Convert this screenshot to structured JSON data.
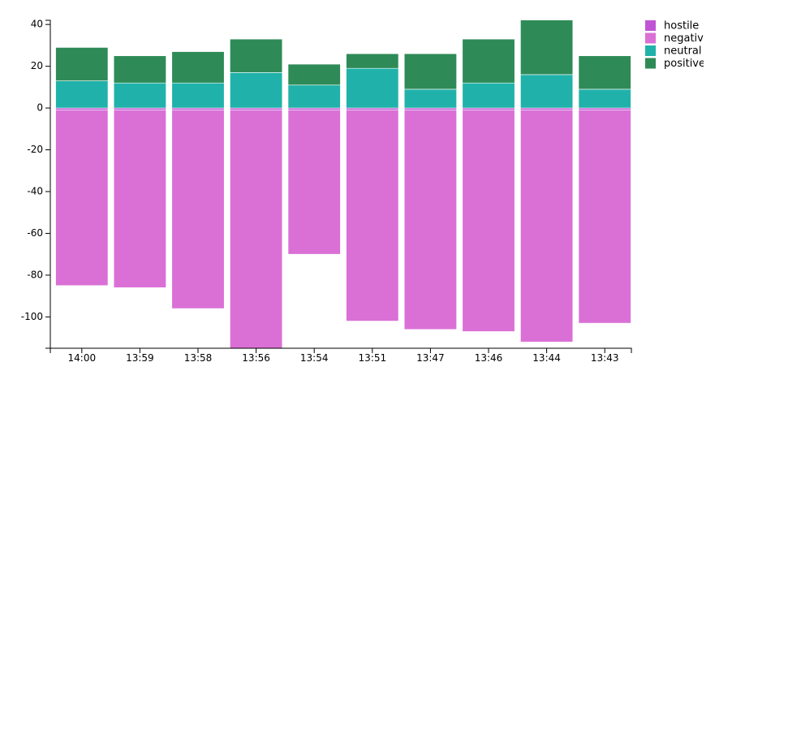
{
  "chart_data": {
    "type": "bar",
    "stacked": true,
    "categories": [
      "14:00",
      "13:59",
      "13:58",
      "13:56",
      "13:54",
      "13:51",
      "13:47",
      "13:46",
      "13:44",
      "13:43"
    ],
    "series": [
      {
        "name": "hostile",
        "color": "#bf55d4",
        "values": [
          -1,
          -1,
          -1,
          -1,
          -1,
          -1,
          -1,
          -1,
          -1,
          -1
        ]
      },
      {
        "name": "negative",
        "color": "#da70d6",
        "values": [
          -84,
          -85,
          -95,
          -120,
          -69,
          -101,
          -105,
          -106,
          -111,
          -102
        ]
      },
      {
        "name": "neutral",
        "color": "#20b2aa",
        "values": [
          13,
          12,
          12,
          17,
          11,
          19,
          9,
          12,
          16,
          9
        ]
      },
      {
        "name": "positive",
        "color": "#2e8b57",
        "values": [
          16,
          13,
          15,
          16,
          10,
          7,
          17,
          21,
          29,
          16
        ]
      }
    ],
    "yticks": [
      40,
      20,
      0,
      -20,
      -40,
      -60,
      -80,
      -100
    ],
    "ylim": [
      -115,
      42
    ],
    "grid": false,
    "legend": "top-right"
  }
}
